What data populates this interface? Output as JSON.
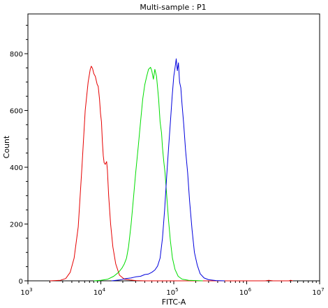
{
  "chart_data": {
    "type": "line",
    "title": "Multi-sample : P1",
    "xlabel": "FITC-A",
    "ylabel": "Count",
    "x_scale": "log10",
    "xlim": [
      1000,
      10000000
    ],
    "ylim": [
      0,
      940
    ],
    "x_ticks": [
      {
        "value": 1000,
        "base": "10",
        "exp": "3"
      },
      {
        "value": 10000,
        "base": "10",
        "exp": "4"
      },
      {
        "value": 100000,
        "base": "10",
        "exp": "5"
      },
      {
        "value": 1000000,
        "base": "10",
        "exp": "6"
      },
      {
        "value": 10000000,
        "base": "10",
        "exp": "7"
      }
    ],
    "y_ticks": [
      0,
      200,
      400,
      600,
      800
    ],
    "grid": false,
    "legend": "none",
    "series": [
      {
        "color": "#e60000",
        "points": [
          [
            2000,
            0
          ],
          [
            2800,
            2
          ],
          [
            3300,
            8
          ],
          [
            3800,
            30
          ],
          [
            4300,
            80
          ],
          [
            4900,
            190
          ],
          [
            5500,
            400
          ],
          [
            6100,
            600
          ],
          [
            6700,
            700
          ],
          [
            7150,
            745
          ],
          [
            7400,
            756
          ],
          [
            7700,
            748
          ],
          [
            8000,
            730
          ],
          [
            8400,
            720
          ],
          [
            8900,
            692
          ],
          [
            9200,
            685
          ],
          [
            9600,
            640
          ],
          [
            9900,
            590
          ],
          [
            10200,
            560
          ],
          [
            10500,
            490
          ],
          [
            10800,
            440
          ],
          [
            11100,
            416
          ],
          [
            11500,
            410
          ],
          [
            12000,
            420
          ],
          [
            12300,
            390
          ],
          [
            12800,
            300
          ],
          [
            13600,
            200
          ],
          [
            14600,
            120
          ],
          [
            16000,
            60
          ],
          [
            18000,
            20
          ],
          [
            21000,
            6
          ],
          [
            25000,
            3
          ],
          [
            30000,
            1
          ],
          [
            40000,
            0
          ],
          [
            1800000,
            0
          ],
          [
            2000000,
            2
          ],
          [
            2300000,
            0
          ],
          [
            3800000,
            0
          ],
          [
            4000000,
            2
          ],
          [
            4300000,
            0
          ]
        ]
      },
      {
        "color": "#00dd00",
        "points": [
          [
            8000,
            0
          ],
          [
            10000,
            2
          ],
          [
            12500,
            6
          ],
          [
            15000,
            16
          ],
          [
            17500,
            30
          ],
          [
            19500,
            45
          ],
          [
            21000,
            60
          ],
          [
            22500,
            80
          ],
          [
            24000,
            120
          ],
          [
            26000,
            200
          ],
          [
            28000,
            290
          ],
          [
            30000,
            380
          ],
          [
            32500,
            470
          ],
          [
            35000,
            560
          ],
          [
            37500,
            640
          ],
          [
            40000,
            690
          ],
          [
            42500,
            720
          ],
          [
            45000,
            745
          ],
          [
            48000,
            752
          ],
          [
            50000,
            740
          ],
          [
            52500,
            710
          ],
          [
            55000,
            745
          ],
          [
            58000,
            720
          ],
          [
            62000,
            640
          ],
          [
            65000,
            560
          ],
          [
            68000,
            520
          ],
          [
            70000,
            470
          ],
          [
            73000,
            420
          ],
          [
            76000,
            380
          ],
          [
            80000,
            300
          ],
          [
            85000,
            210
          ],
          [
            90000,
            140
          ],
          [
            96000,
            80
          ],
          [
            104000,
            40
          ],
          [
            115000,
            16
          ],
          [
            130000,
            6
          ],
          [
            160000,
            2
          ],
          [
            250000,
            0
          ]
        ]
      },
      {
        "color": "#0000dd",
        "points": [
          [
            14000,
            0
          ],
          [
            18000,
            3
          ],
          [
            22000,
            8
          ],
          [
            26000,
            10
          ],
          [
            30000,
            14
          ],
          [
            35000,
            16
          ],
          [
            40000,
            22
          ],
          [
            45000,
            24
          ],
          [
            50000,
            30
          ],
          [
            55000,
            38
          ],
          [
            60000,
            52
          ],
          [
            65000,
            80
          ],
          [
            70000,
            150
          ],
          [
            75000,
            250
          ],
          [
            80000,
            370
          ],
          [
            85000,
            470
          ],
          [
            90000,
            560
          ],
          [
            95000,
            650
          ],
          [
            100000,
            720
          ],
          [
            104000,
            750
          ],
          [
            108000,
            782
          ],
          [
            112000,
            740
          ],
          [
            116000,
            768
          ],
          [
            120000,
            700
          ],
          [
            125000,
            680
          ],
          [
            130000,
            620
          ],
          [
            137000,
            550
          ],
          [
            145000,
            460
          ],
          [
            155000,
            380
          ],
          [
            165000,
            280
          ],
          [
            178000,
            180
          ],
          [
            192000,
            100
          ],
          [
            210000,
            55
          ],
          [
            230000,
            25
          ],
          [
            260000,
            10
          ],
          [
            300000,
            4
          ],
          [
            380000,
            1
          ],
          [
            500000,
            0
          ]
        ]
      }
    ]
  }
}
